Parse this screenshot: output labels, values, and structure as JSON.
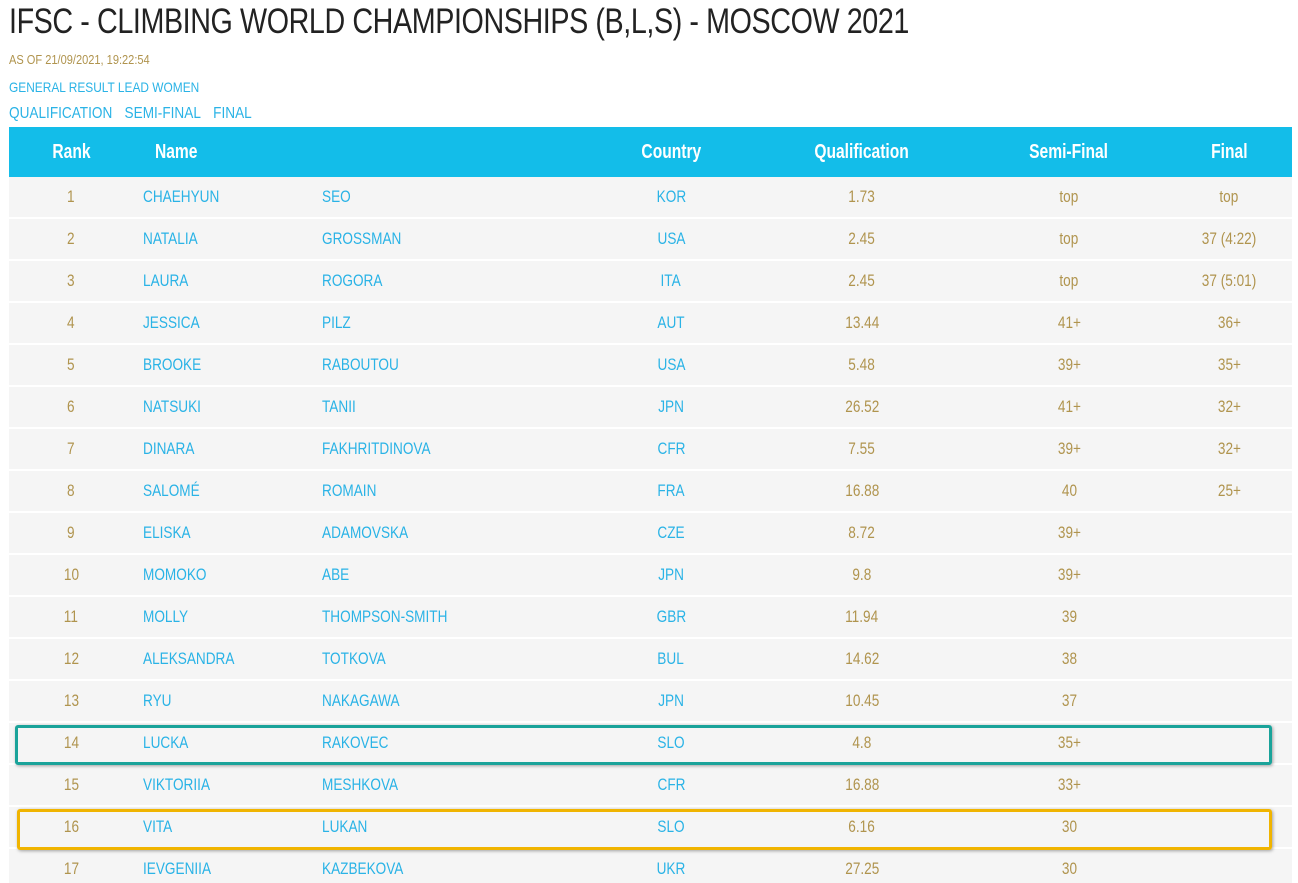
{
  "header": {
    "title": "IFSC - CLIMBING WORLD CHAMPIONSHIPS (B,L,S) - MOSCOW 2021",
    "as_of": "AS OF 21/09/2021, 19:22:54",
    "subtitle": "GENERAL RESULT LEAD WOMEN",
    "rounds": [
      "QUALIFICATION",
      "SEMI-FINAL",
      "FINAL"
    ]
  },
  "table": {
    "columns": {
      "rank": "Rank",
      "name": "Name",
      "country": "Country",
      "qualification": "Qualification",
      "semi_final": "Semi-Final",
      "final": "Final"
    },
    "rows": [
      {
        "rank": "1",
        "first": "CHAEHYUN",
        "last": "SEO",
        "country": "KOR",
        "qual": "1.73",
        "semi": "top",
        "final": "top"
      },
      {
        "rank": "2",
        "first": "NATALIA",
        "last": "GROSSMAN",
        "country": "USA",
        "qual": "2.45",
        "semi": "top",
        "final": "37 (4:22)"
      },
      {
        "rank": "3",
        "first": "LAURA",
        "last": "ROGORA",
        "country": "ITA",
        "qual": "2.45",
        "semi": "top",
        "final": "37 (5:01)"
      },
      {
        "rank": "4",
        "first": "JESSICA",
        "last": "PILZ",
        "country": "AUT",
        "qual": "13.44",
        "semi": "41+",
        "final": "36+"
      },
      {
        "rank": "5",
        "first": "BROOKE",
        "last": "RABOUTOU",
        "country": "USA",
        "qual": "5.48",
        "semi": "39+",
        "final": "35+"
      },
      {
        "rank": "6",
        "first": "NATSUKI",
        "last": "TANII",
        "country": "JPN",
        "qual": "26.52",
        "semi": "41+",
        "final": "32+"
      },
      {
        "rank": "7",
        "first": "DINARA",
        "last": "FAKHRITDINOVA",
        "country": "CFR",
        "qual": "7.55",
        "semi": "39+",
        "final": "32+"
      },
      {
        "rank": "8",
        "first": "SALOMÉ",
        "last": "ROMAIN",
        "country": "FRA",
        "qual": "16.88",
        "semi": "40",
        "final": "25+"
      },
      {
        "rank": "9",
        "first": "ELISKA",
        "last": "ADAMOVSKA",
        "country": "CZE",
        "qual": "8.72",
        "semi": "39+",
        "final": ""
      },
      {
        "rank": "10",
        "first": "MOMOKO",
        "last": "ABE",
        "country": "JPN",
        "qual": "9.8",
        "semi": "39+",
        "final": ""
      },
      {
        "rank": "11",
        "first": "MOLLY",
        "last": "THOMPSON-SMITH",
        "country": "GBR",
        "qual": "11.94",
        "semi": "39",
        "final": ""
      },
      {
        "rank": "12",
        "first": "ALEKSANDRA",
        "last": "TOTKOVA",
        "country": "BUL",
        "qual": "14.62",
        "semi": "38",
        "final": ""
      },
      {
        "rank": "13",
        "first": "RYU",
        "last": "NAKAGAWA",
        "country": "JPN",
        "qual": "10.45",
        "semi": "37",
        "final": ""
      },
      {
        "rank": "14",
        "first": "LUCKA",
        "last": "RAKOVEC",
        "country": "SLO",
        "qual": "4.8",
        "semi": "35+",
        "final": ""
      },
      {
        "rank": "15",
        "first": "VIKTORIIA",
        "last": "MESHKOVA",
        "country": "CFR",
        "qual": "16.88",
        "semi": "33+",
        "final": ""
      },
      {
        "rank": "16",
        "first": "VITA",
        "last": "LUKAN",
        "country": "SLO",
        "qual": "6.16",
        "semi": "30",
        "final": ""
      },
      {
        "rank": "17",
        "first": "IEVGENIIA",
        "last": "KAZBEKOVA",
        "country": "UKR",
        "qual": "27.25",
        "semi": "30",
        "final": ""
      }
    ]
  },
  "colors": {
    "header_bg": "#13bde9",
    "row_bg": "#f5f5f5",
    "gold_text": "#b0944e",
    "link_blue": "#2ab3e6",
    "highlight_green": "#1aa39a",
    "highlight_orange": "#f0b400"
  }
}
